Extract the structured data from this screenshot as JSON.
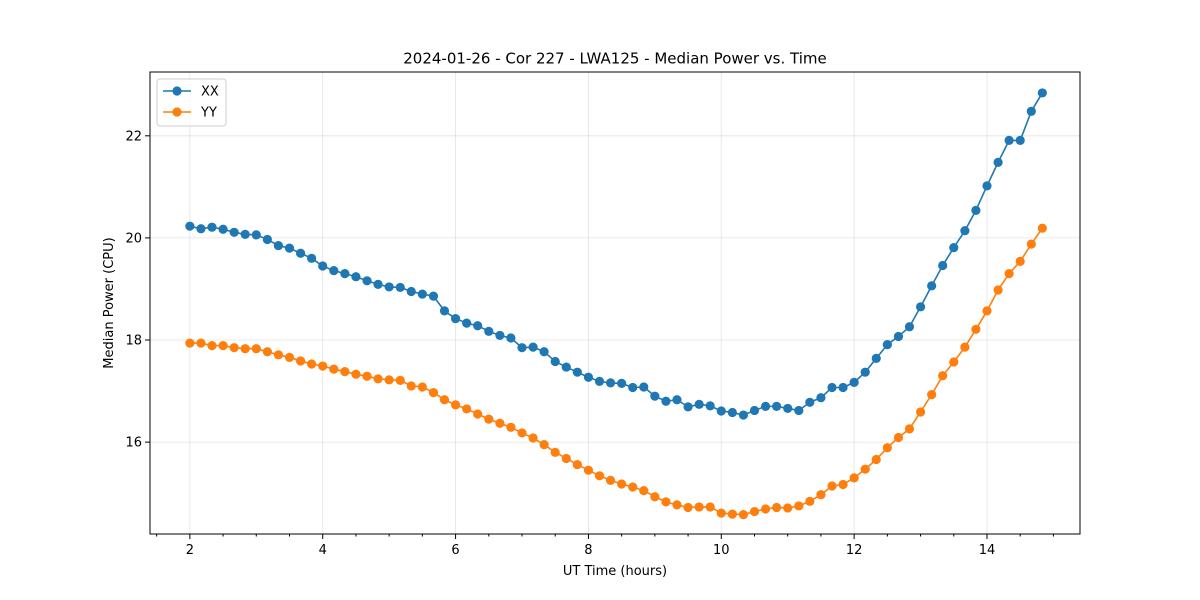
{
  "chart_data": {
    "type": "line",
    "title": "2024-01-26 - Cor 227 - LWA125 - Median Power vs. Time",
    "xlabel": "UT Time (hours)",
    "ylabel": "Median Power (CPU)",
    "xlim": [
      1.4,
      15.4
    ],
    "ylim": [
      14.2,
      23.25
    ],
    "xticks": [
      2,
      4,
      6,
      8,
      10,
      12,
      14
    ],
    "yticks": [
      16,
      18,
      20,
      22
    ],
    "grid": true,
    "legend_position": "top-left",
    "x": [
      2.0,
      2.167,
      2.333,
      2.5,
      2.667,
      2.833,
      3.0,
      3.167,
      3.333,
      3.5,
      3.667,
      3.833,
      4.0,
      4.167,
      4.333,
      4.5,
      4.667,
      4.833,
      5.0,
      5.167,
      5.333,
      5.5,
      5.667,
      5.833,
      6.0,
      6.167,
      6.333,
      6.5,
      6.667,
      6.833,
      7.0,
      7.167,
      7.333,
      7.5,
      7.667,
      7.833,
      8.0,
      8.167,
      8.333,
      8.5,
      8.667,
      8.833,
      9.0,
      9.167,
      9.333,
      9.5,
      9.667,
      9.833,
      10.0,
      10.167,
      10.333,
      10.5,
      10.667,
      10.833,
      11.0,
      11.167,
      11.333,
      11.5,
      11.667,
      11.833,
      12.0,
      12.167,
      12.333,
      12.5,
      12.667,
      12.833,
      13.0,
      13.167,
      13.333,
      13.5,
      13.667,
      13.833,
      14.0,
      14.167,
      14.333,
      14.5,
      14.667,
      14.833
    ],
    "series": [
      {
        "name": "XX",
        "color": "#1f77b4",
        "values": [
          20.23,
          20.18,
          20.21,
          20.17,
          20.11,
          20.07,
          20.06,
          19.97,
          19.85,
          19.8,
          19.7,
          19.6,
          19.45,
          19.36,
          19.3,
          19.24,
          19.16,
          19.09,
          19.04,
          19.03,
          18.95,
          18.9,
          18.86,
          18.57,
          18.42,
          18.33,
          18.28,
          18.17,
          18.09,
          18.04,
          17.85,
          17.86,
          17.77,
          17.58,
          17.47,
          17.37,
          17.27,
          17.19,
          17.16,
          17.15,
          17.07,
          17.08,
          16.9,
          16.8,
          16.83,
          16.69,
          16.74,
          16.71,
          16.61,
          16.58,
          16.53,
          16.62,
          16.7,
          16.7,
          16.66,
          16.62,
          16.78,
          16.87,
          17.07,
          17.07,
          17.17,
          17.37,
          17.64,
          17.91,
          18.07,
          18.26,
          18.65,
          19.06,
          19.46,
          19.81,
          20.14,
          20.54,
          21.02,
          21.48,
          21.91,
          21.91,
          22.48,
          22.84
        ]
      },
      {
        "name": "YY",
        "color": "#ff7f0e",
        "values": [
          17.94,
          17.94,
          17.89,
          17.89,
          17.85,
          17.83,
          17.83,
          17.77,
          17.71,
          17.66,
          17.59,
          17.53,
          17.49,
          17.43,
          17.38,
          17.33,
          17.29,
          17.24,
          17.22,
          17.21,
          17.1,
          17.08,
          16.97,
          16.83,
          16.73,
          16.65,
          16.55,
          16.45,
          16.37,
          16.29,
          16.18,
          16.08,
          15.95,
          15.8,
          15.68,
          15.56,
          15.45,
          15.34,
          15.25,
          15.18,
          15.12,
          15.05,
          14.93,
          14.83,
          14.77,
          14.72,
          14.73,
          14.73,
          14.61,
          14.59,
          14.58,
          14.64,
          14.69,
          14.72,
          14.71,
          14.75,
          14.84,
          14.97,
          15.14,
          15.17,
          15.3,
          15.47,
          15.66,
          15.89,
          16.09,
          16.26,
          16.59,
          16.93,
          17.3,
          17.57,
          17.86,
          18.21,
          18.57,
          18.98,
          19.3,
          19.54,
          19.88,
          20.19
        ]
      }
    ]
  }
}
